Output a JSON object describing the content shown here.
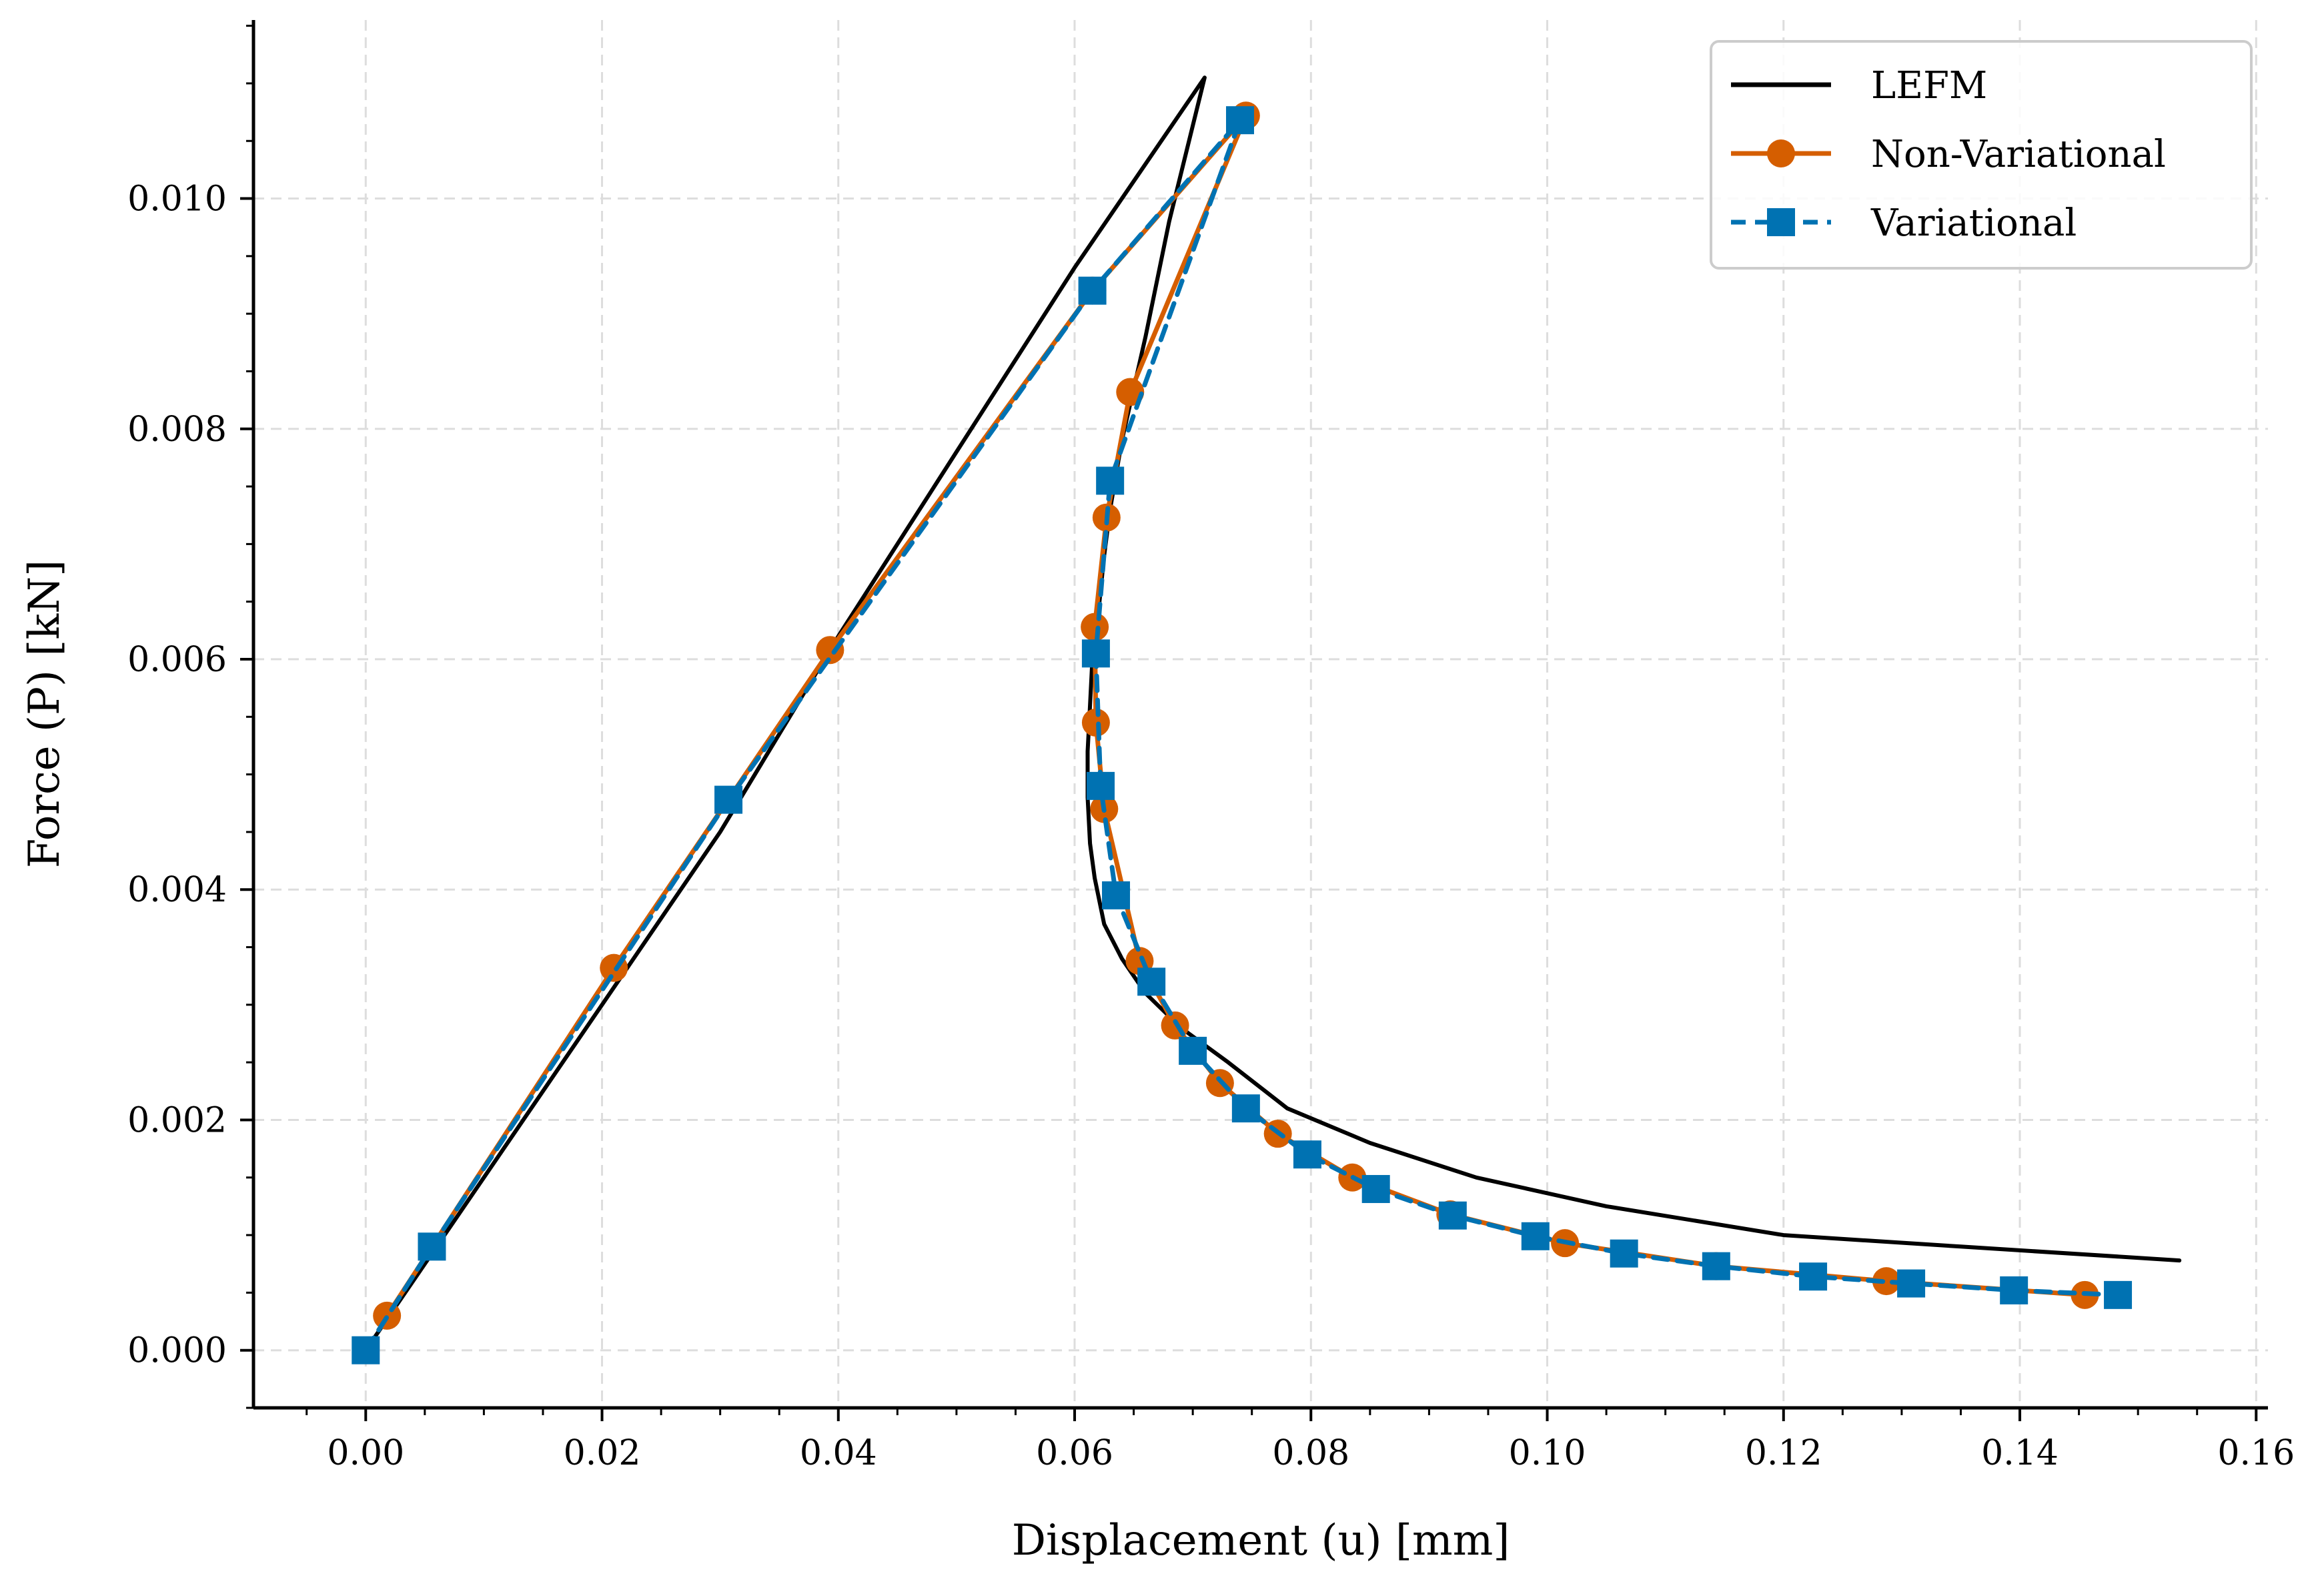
{
  "chart_data": {
    "type": "line",
    "xlabel": "Displacement (u) [mm]",
    "ylabel": "Force (P) [kN]",
    "xlim": [
      -0.0095,
      0.161
    ],
    "ylim": [
      -0.0005,
      0.01155
    ],
    "x_ticks": [
      0.0,
      0.02,
      0.04,
      0.06,
      0.08,
      0.1,
      0.12,
      0.14,
      0.16
    ],
    "x_tick_labels": [
      "0.00",
      "0.02",
      "0.04",
      "0.06",
      "0.08",
      "0.10",
      "0.12",
      "0.14",
      "0.16"
    ],
    "y_ticks": [
      0.0,
      0.002,
      0.004,
      0.006,
      0.008,
      0.01
    ],
    "y_tick_labels": [
      "0.000",
      "0.002",
      "0.004",
      "0.006",
      "0.008",
      "0.010"
    ],
    "grid": true,
    "legend_position": "top-right",
    "series": [
      {
        "name": "LEFM",
        "color": "#000000",
        "style": "solid",
        "marker": "none",
        "x": [
          0.0,
          0.01,
          0.02,
          0.03,
          0.04,
          0.05,
          0.06,
          0.071,
          0.068,
          0.066,
          0.064,
          0.063,
          0.0625,
          0.062,
          0.0615,
          0.0613,
          0.0611,
          0.0611,
          0.0613,
          0.0617,
          0.0625,
          0.064,
          0.066,
          0.069,
          0.073,
          0.078,
          0.085,
          0.094,
          0.105,
          0.12,
          0.135,
          0.1535
        ],
        "y": [
          0.0,
          0.0015,
          0.003,
          0.0045,
          0.0062,
          0.0078,
          0.0094,
          0.01105,
          0.0098,
          0.0088,
          0.0079,
          0.0073,
          0.0069,
          0.0064,
          0.006,
          0.0056,
          0.0052,
          0.0048,
          0.0044,
          0.0041,
          0.0037,
          0.0034,
          0.0031,
          0.0028,
          0.0025,
          0.0021,
          0.0018,
          0.0015,
          0.00125,
          0.001,
          0.0009,
          0.00078
        ]
      },
      {
        "name": "Non-Variational",
        "color": "#d55e00",
        "style": "solid",
        "marker": "circle",
        "x": [
          0.0018,
          0.021,
          0.0393,
          0.0615,
          0.0745,
          0.0647,
          0.0627,
          0.0617,
          0.0618,
          0.0625,
          0.0655,
          0.0685,
          0.0723,
          0.0772,
          0.0835,
          0.0918,
          0.1015,
          0.1143,
          0.1287,
          0.1455
        ],
        "y": [
          0.0003,
          0.00332,
          0.00608,
          0.0092,
          0.01072,
          0.00832,
          0.00723,
          0.00628,
          0.00545,
          0.0047,
          0.00338,
          0.00282,
          0.00232,
          0.00188,
          0.0015,
          0.00118,
          0.00093,
          0.00073,
          0.0006,
          0.00048
        ]
      },
      {
        "name": "Variational",
        "color": "#0072b2",
        "style": "dashed",
        "marker": "square",
        "x": [
          0.0,
          0.0056,
          0.0307,
          0.0615,
          0.074,
          0.063,
          0.0618,
          0.0622,
          0.0635,
          0.0665,
          0.07,
          0.0745,
          0.0797,
          0.0855,
          0.092,
          0.099,
          0.1065,
          0.1143,
          0.1225,
          0.1308,
          0.1395,
          0.1483
        ],
        "y": [
          0.0,
          0.0009,
          0.00478,
          0.0092,
          0.01068,
          0.00755,
          0.00605,
          0.0049,
          0.00395,
          0.0032,
          0.0026,
          0.0021,
          0.0017,
          0.0014,
          0.00117,
          0.00099,
          0.00084,
          0.00073,
          0.00064,
          0.00058,
          0.00052,
          0.00048
        ]
      }
    ]
  }
}
